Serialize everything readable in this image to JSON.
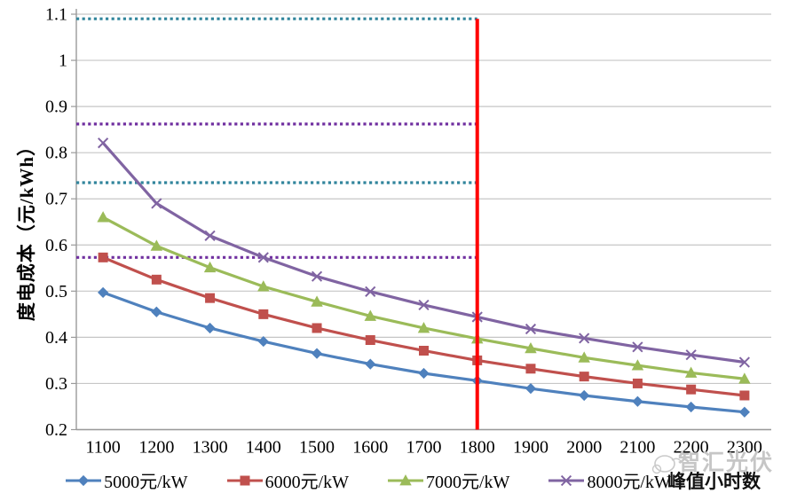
{
  "chart_data": {
    "type": "line",
    "title": "",
    "x_axis_title": "峰值小时数",
    "y_axis_title": "度电成本（元/kWh）",
    "watermark_text": "智汇光伏",
    "categories": [
      1100,
      1200,
      1300,
      1400,
      1500,
      1600,
      1700,
      1800,
      1900,
      2000,
      2100,
      2200,
      2300
    ],
    "series": [
      {
        "name": "5000元/kW",
        "color": "#4F81BD",
        "marker": "diamond",
        "values": [
          0.497,
          0.455,
          0.42,
          0.391,
          0.365,
          0.342,
          0.322,
          0.306,
          0.289,
          0.274,
          0.261,
          0.249,
          0.238
        ]
      },
      {
        "name": "6000元/kW",
        "color": "#C0504D",
        "marker": "square",
        "values": [
          0.573,
          0.525,
          0.485,
          0.45,
          0.42,
          0.394,
          0.371,
          0.35,
          0.332,
          0.315,
          0.3,
          0.287,
          0.274
        ]
      },
      {
        "name": "7000元/kW",
        "color": "#9BBB59",
        "marker": "triangle",
        "values": [
          0.66,
          0.598,
          0.551,
          0.51,
          0.477,
          0.446,
          0.42,
          0.397,
          0.376,
          0.356,
          0.339,
          0.323,
          0.31
        ]
      },
      {
        "name": "8000元/kW",
        "color": "#8064A2",
        "marker": "x",
        "values": [
          0.821,
          0.69,
          0.62,
          0.573,
          0.532,
          0.499,
          0.47,
          0.444,
          0.418,
          0.398,
          0.379,
          0.362,
          0.346
        ]
      }
    ],
    "ref_lines": [
      {
        "value": 1.09,
        "color": "#31859C",
        "style": "dotted"
      },
      {
        "value": 0.862,
        "color": "#7030A0",
        "style": "dotted"
      },
      {
        "value": 0.735,
        "color": "#31859C",
        "style": "dotted"
      },
      {
        "value": 0.573,
        "color": "#7030A0",
        "style": "dotted"
      }
    ],
    "vline": {
      "at": 1800,
      "color": "#FF0000"
    },
    "ylim": [
      0.2,
      1.1
    ],
    "ytick_labels": [
      "0.2",
      "0.3",
      "0.4",
      "0.5",
      "0.6",
      "0.7",
      "0.8",
      "0.9",
      "1",
      "1.1"
    ],
    "grid": true,
    "legend_position": "bottom",
    "axis_color": "#9a9a9a",
    "grid_color": "#c6c6c6"
  }
}
